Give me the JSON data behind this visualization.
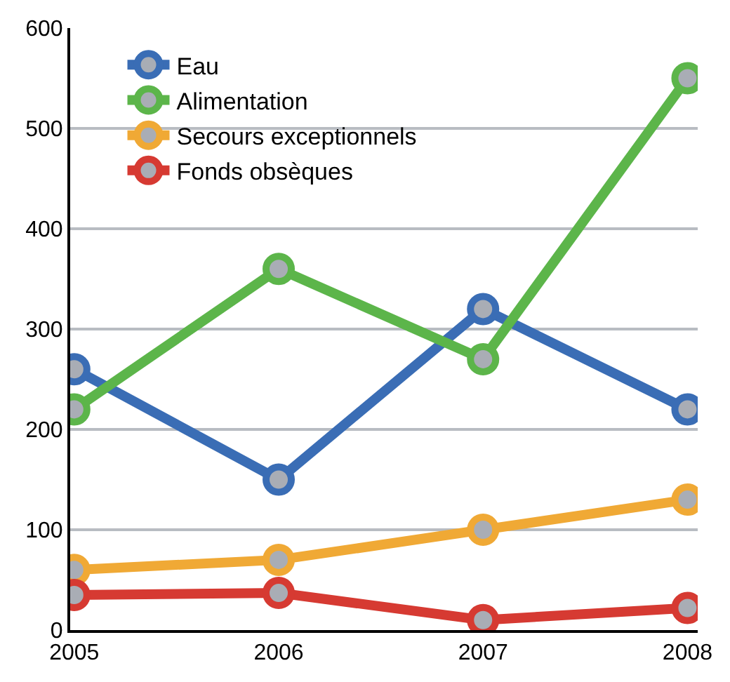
{
  "chart_data": {
    "type": "line",
    "categories": [
      "2005",
      "2006",
      "2007",
      "2008"
    ],
    "series": [
      {
        "name": "Eau",
        "color": "#3a6db5",
        "values": [
          260,
          150,
          320,
          220
        ]
      },
      {
        "name": "Alimentation",
        "color": "#5cb54a",
        "values": [
          220,
          360,
          270,
          550
        ]
      },
      {
        "name": "Secours exceptionnels",
        "color": "#f0a935",
        "values": [
          60,
          70,
          100,
          130
        ]
      },
      {
        "name": "Fonds obsèques",
        "color": "#d63a32",
        "values": [
          35,
          37,
          10,
          22
        ]
      }
    ],
    "ylim": [
      0,
      600
    ],
    "yticks": [
      0,
      100,
      200,
      300,
      400,
      500,
      600
    ],
    "grid": "y",
    "legend": "top left",
    "marker": "circle",
    "line_style": "solid"
  }
}
